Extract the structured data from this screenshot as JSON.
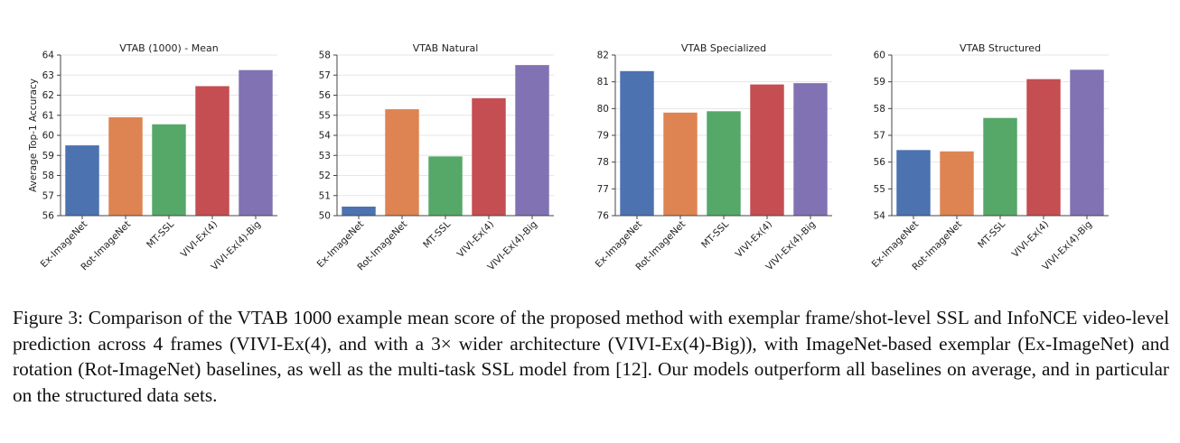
{
  "chart_data": [
    {
      "type": "bar",
      "title": "VTAB (1000) - Mean",
      "ylabel": "Average Top-1 Accuracy",
      "xlabel": "",
      "categories": [
        "Ex-ImageNet",
        "Rot-ImageNet",
        "MT-SSL",
        "VIVI-Ex(4)",
        "VIVI-Ex(4)-Big"
      ],
      "values": [
        59.5,
        60.9,
        60.55,
        62.45,
        63.25
      ],
      "ylim": [
        56,
        64
      ],
      "yticks": [
        56,
        57,
        58,
        59,
        60,
        61,
        62,
        63,
        64
      ],
      "grid": true
    },
    {
      "type": "bar",
      "title": "VTAB Natural",
      "ylabel": "",
      "xlabel": "",
      "categories": [
        "Ex-ImageNet",
        "Rot-ImageNet",
        "MT-SSL",
        "VIVI-Ex(4)",
        "VIVI-Ex(4)-Big"
      ],
      "values": [
        50.45,
        55.3,
        52.95,
        55.85,
        57.5
      ],
      "ylim": [
        50,
        58
      ],
      "yticks": [
        50,
        51,
        52,
        53,
        54,
        55,
        56,
        57,
        58
      ],
      "grid": true
    },
    {
      "type": "bar",
      "title": "VTAB Specialized",
      "ylabel": "",
      "xlabel": "",
      "categories": [
        "Ex-ImageNet",
        "Rot-ImageNet",
        "MT-SSL",
        "VIVI-Ex(4)",
        "VIVI-Ex(4)-Big"
      ],
      "values": [
        81.4,
        79.85,
        79.9,
        80.9,
        80.95
      ],
      "ylim": [
        76,
        82
      ],
      "yticks": [
        76,
        77,
        78,
        79,
        80,
        81,
        82
      ],
      "grid": true
    },
    {
      "type": "bar",
      "title": "VTAB Structured",
      "ylabel": "",
      "xlabel": "",
      "categories": [
        "Ex-ImageNet",
        "Rot-ImageNet",
        "MT-SSL",
        "VIVI-Ex(4)",
        "VIVI-Ex(4)-Big"
      ],
      "values": [
        56.45,
        56.4,
        57.65,
        59.1,
        59.45
      ],
      "ylim": [
        54,
        60
      ],
      "yticks": [
        54,
        55,
        56,
        57,
        58,
        59,
        60
      ],
      "grid": true
    }
  ],
  "colors": {
    "bars": [
      "#4c72b0",
      "#dd8452",
      "#55a868",
      "#c44e52",
      "#8172b3"
    ],
    "grid": "#e6e6e6",
    "axis": "#444444"
  },
  "caption": "Figure 3: Comparison of the VTAB 1000 example mean score of the proposed method with exemplar frame/shot-level SSL and InfoNCE video-level prediction across 4 frames (VIVI-Ex(4), and with a 3× wider architecture (VIVI-Ex(4)-Big)), with ImageNet-based exemplar (Ex-ImageNet) and rotation (Rot-ImageNet) baselines, as well as the multi-task SSL model from [12]. Our models outperform all baselines on average, and in particular on the structured data sets."
}
